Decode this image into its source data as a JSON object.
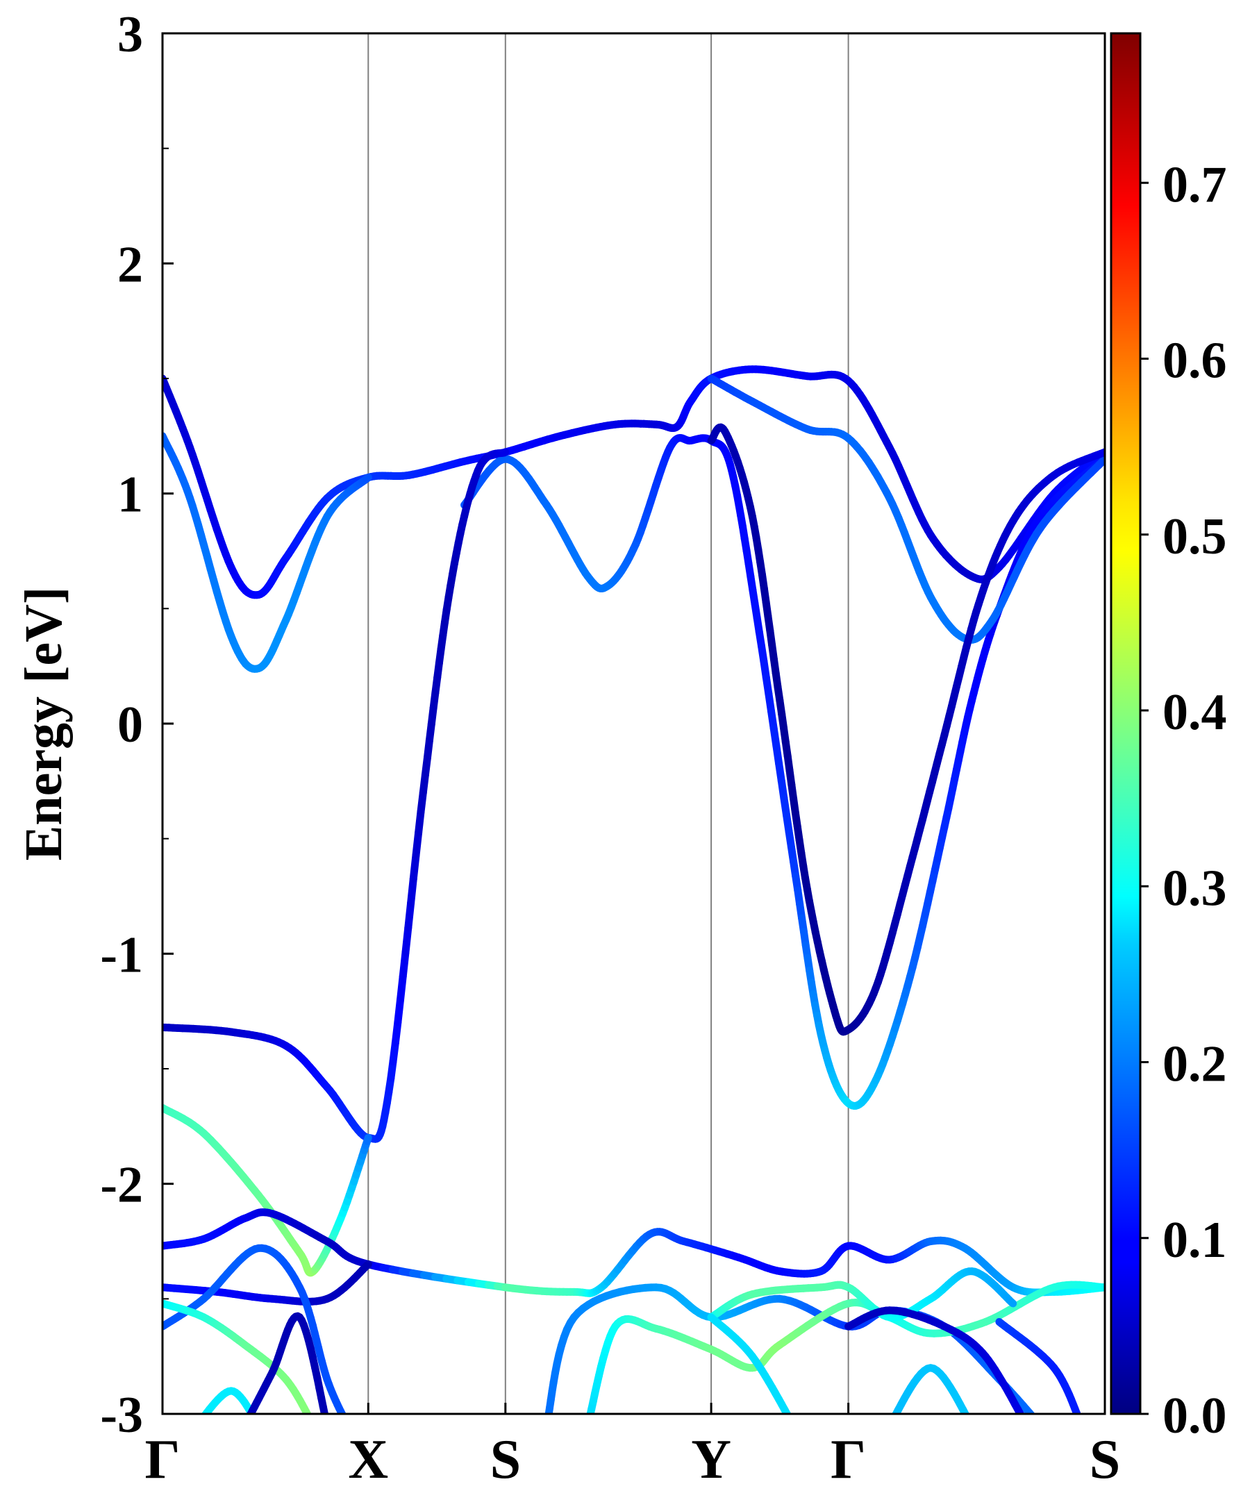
{
  "chart_data": {
    "type": "line",
    "title": "",
    "ylabel": "Energy [eV]",
    "xlabel": "",
    "ylim": [
      -3,
      3
    ],
    "y_ticks": [
      "3",
      "2",
      "1",
      "0",
      "-1",
      "-2",
      "-3"
    ],
    "y_tick_values": [
      3,
      2,
      1,
      0,
      -1,
      -2,
      -3
    ],
    "x_range": [
      0,
      6.87
    ],
    "kpoints": [
      {
        "label": "Γ",
        "x": 0.0
      },
      {
        "label": "X",
        "x": 1.5
      },
      {
        "label": "S",
        "x": 2.5
      },
      {
        "label": "Y",
        "x": 4.0
      },
      {
        "label": "Γ",
        "x": 5.0
      },
      {
        "label": "S",
        "x": 6.87
      }
    ],
    "colorbar": {
      "colormap": "jet",
      "range": [
        0.0,
        0.785
      ],
      "ticks": [
        "0.0",
        "0.1",
        "0.2",
        "0.3",
        "0.4",
        "0.5",
        "0.6",
        "0.7"
      ],
      "tick_values": [
        0.0,
        0.1,
        0.2,
        0.3,
        0.4,
        0.5,
        0.6,
        0.7
      ]
    },
    "series": [
      {
        "points": [
          [
            0,
            1.5,
            0.06
          ],
          [
            0.2,
            1.2,
            0.07
          ],
          [
            0.5,
            0.68,
            0.09
          ],
          [
            0.7,
            0.56,
            0.1
          ],
          [
            0.9,
            0.72,
            0.11
          ],
          [
            1.2,
            0.98,
            0.13
          ],
          [
            1.5,
            1.07,
            0.14
          ],
          [
            1.8,
            1.08,
            0.13
          ],
          [
            2.2,
            1.14,
            0.11
          ],
          [
            2.5,
            1.18,
            0.1
          ],
          [
            2.9,
            1.25,
            0.09
          ],
          [
            3.3,
            1.3,
            0.08
          ],
          [
            3.6,
            1.3,
            0.07
          ],
          [
            3.75,
            1.29,
            0.08
          ],
          [
            3.85,
            1.4,
            0.1
          ],
          [
            4.0,
            1.5,
            0.11
          ],
          [
            4.3,
            1.54,
            0.1
          ],
          [
            4.7,
            1.51,
            0.09
          ],
          [
            5.0,
            1.49,
            0.08
          ],
          [
            5.3,
            1.2,
            0.07
          ],
          [
            5.6,
            0.82,
            0.07
          ],
          [
            5.9,
            0.64,
            0.06
          ],
          [
            6.1,
            0.68,
            0.08
          ],
          [
            6.5,
            1.0,
            0.1
          ],
          [
            6.87,
            1.18,
            0.11
          ]
        ]
      },
      {
        "points": [
          [
            0,
            1.25,
            0.17
          ],
          [
            0.2,
            0.98,
            0.18
          ],
          [
            0.5,
            0.38,
            0.2
          ],
          [
            0.7,
            0.24,
            0.21
          ],
          [
            0.9,
            0.45,
            0.21
          ],
          [
            1.2,
            0.9,
            0.19
          ],
          [
            1.5,
            1.07,
            0.16
          ]
        ]
      },
      {
        "points": [
          [
            2.2,
            0.95,
            0.16
          ],
          [
            2.5,
            1.15,
            0.17
          ],
          [
            2.8,
            0.95,
            0.18
          ],
          [
            3.1,
            0.64,
            0.19
          ],
          [
            3.25,
            0.6,
            0.19
          ],
          [
            3.45,
            0.78,
            0.17
          ],
          [
            3.7,
            1.2,
            0.12
          ],
          [
            3.85,
            1.23,
            0.1
          ],
          [
            4.0,
            1.23,
            0.1
          ],
          [
            4.15,
            1.1,
            0.1
          ],
          [
            4.35,
            0.4,
            0.11
          ],
          [
            4.6,
            -0.6,
            0.14
          ],
          [
            4.8,
            -1.35,
            0.22
          ],
          [
            5.0,
            -1.65,
            0.27
          ],
          [
            5.2,
            -1.55,
            0.24
          ],
          [
            5.45,
            -1.1,
            0.18
          ],
          [
            5.7,
            -0.45,
            0.13
          ],
          [
            5.9,
            0.1,
            0.1
          ],
          [
            6.1,
            0.5,
            0.09
          ],
          [
            6.4,
            0.9,
            0.1
          ],
          [
            6.87,
            1.15,
            0.12
          ]
        ]
      },
      {
        "points": [
          [
            4.0,
            1.5,
            0.14
          ],
          [
            4.3,
            1.4,
            0.16
          ],
          [
            4.7,
            1.28,
            0.17
          ],
          [
            5.0,
            1.24,
            0.18
          ],
          [
            5.3,
            0.98,
            0.18
          ],
          [
            5.6,
            0.55,
            0.19
          ],
          [
            5.85,
            0.37,
            0.19
          ],
          [
            6.05,
            0.45,
            0.18
          ],
          [
            6.4,
            0.85,
            0.16
          ],
          [
            6.87,
            1.15,
            0.15
          ]
        ]
      },
      {
        "points": [
          [
            4.0,
            1.23,
            0.04
          ],
          [
            4.1,
            1.27,
            0.04
          ],
          [
            4.3,
            0.9,
            0.03
          ],
          [
            4.5,
            0.1,
            0.02
          ],
          [
            4.7,
            -0.72,
            0.02
          ],
          [
            4.9,
            -1.25,
            0.02
          ],
          [
            5.0,
            -1.33,
            0.02
          ],
          [
            5.2,
            -1.15,
            0.03
          ],
          [
            5.45,
            -0.62,
            0.04
          ],
          [
            5.7,
            -0.05,
            0.04
          ],
          [
            5.95,
            0.52,
            0.05
          ],
          [
            6.2,
            0.88,
            0.06
          ],
          [
            6.5,
            1.08,
            0.07
          ],
          [
            6.87,
            1.18,
            0.08
          ]
        ]
      },
      {
        "points": [
          [
            0,
            -1.32,
            0.05
          ],
          [
            0.5,
            -1.34,
            0.06
          ],
          [
            0.9,
            -1.4,
            0.08
          ],
          [
            1.2,
            -1.58,
            0.11
          ],
          [
            1.5,
            -1.8,
            0.14
          ],
          [
            1.65,
            -1.6,
            0.12
          ],
          [
            1.9,
            -0.3,
            0.05
          ],
          [
            2.1,
            0.6,
            0.04
          ],
          [
            2.3,
            1.1,
            0.06
          ],
          [
            2.5,
            1.18,
            0.08
          ]
        ]
      },
      {
        "points": [
          [
            0,
            -1.67,
            0.34
          ],
          [
            0.3,
            -1.78,
            0.35
          ],
          [
            0.7,
            -2.05,
            0.37
          ],
          [
            1.0,
            -2.3,
            0.4
          ],
          [
            1.1,
            -2.38,
            0.41
          ],
          [
            1.3,
            -2.15,
            0.3
          ],
          [
            1.5,
            -1.8,
            0.18
          ]
        ]
      },
      {
        "points": [
          [
            0,
            -2.27,
            0.1
          ],
          [
            0.3,
            -2.24,
            0.11
          ],
          [
            0.6,
            -2.15,
            0.09
          ],
          [
            0.8,
            -2.13,
            0.07
          ],
          [
            1.2,
            -2.25,
            0.05
          ],
          [
            1.5,
            -2.35,
            0.06
          ],
          [
            2.5,
            -2.45,
            0.36
          ],
          [
            3.0,
            -2.47,
            0.34
          ],
          [
            3.2,
            -2.45,
            0.26
          ],
          [
            3.55,
            -2.22,
            0.17
          ],
          [
            3.8,
            -2.25,
            0.14
          ],
          [
            4.2,
            -2.32,
            0.1
          ],
          [
            4.5,
            -2.38,
            0.1
          ],
          [
            4.8,
            -2.38,
            0.12
          ],
          [
            5.0,
            -2.27,
            0.1
          ],
          [
            5.3,
            -2.33,
            0.11
          ],
          [
            5.6,
            -2.25,
            0.18
          ],
          [
            5.85,
            -2.28,
            0.2
          ],
          [
            6.2,
            -2.45,
            0.22
          ],
          [
            6.5,
            -2.47,
            0.28
          ],
          [
            6.87,
            -2.45,
            0.3
          ]
        ]
      },
      {
        "points": [
          [
            0,
            -2.45,
            0.11
          ],
          [
            0.4,
            -2.47,
            0.1
          ],
          [
            0.8,
            -2.5,
            0.08
          ],
          [
            1.2,
            -2.5,
            0.05
          ],
          [
            1.5,
            -2.35,
            0.04
          ]
        ]
      },
      {
        "points": [
          [
            0,
            -2.62,
            0.16
          ],
          [
            0.3,
            -2.5,
            0.17
          ],
          [
            0.7,
            -2.28,
            0.17
          ],
          [
            1.0,
            -2.45,
            0.16
          ],
          [
            1.2,
            -2.85,
            0.16
          ],
          [
            1.35,
            -3.05,
            0.16
          ]
        ]
      },
      {
        "points": [
          [
            0,
            -2.52,
            0.29
          ],
          [
            0.3,
            -2.58,
            0.32
          ],
          [
            0.6,
            -2.7,
            0.37
          ],
          [
            0.9,
            -2.85,
            0.39
          ],
          [
            1.1,
            -3.05,
            0.4
          ]
        ]
      },
      {
        "points": [
          [
            0.25,
            -3.05,
            0.28
          ],
          [
            0.5,
            -2.9,
            0.28
          ],
          [
            0.7,
            -3.05,
            0.28
          ]
        ]
      },
      {
        "points": [
          [
            0.6,
            -3.05,
            0.05
          ],
          [
            0.8,
            -2.82,
            0.04
          ],
          [
            1.0,
            -2.58,
            0.04
          ],
          [
            1.2,
            -3.05,
            0.04
          ]
        ]
      },
      {
        "points": [
          [
            2.8,
            -3.05,
            0.18
          ],
          [
            3.0,
            -2.58,
            0.2
          ],
          [
            3.6,
            -2.45,
            0.22
          ],
          [
            4.0,
            -2.58,
            0.24
          ],
          [
            4.5,
            -2.5,
            0.2
          ],
          [
            5.0,
            -2.62,
            0.14
          ],
          [
            5.3,
            -2.55,
            0.15
          ],
          [
            5.7,
            -2.62,
            0.16
          ],
          [
            6.1,
            -2.85,
            0.18
          ],
          [
            6.4,
            -3.05,
            0.18
          ]
        ]
      },
      {
        "points": [
          [
            3.1,
            -3.05,
            0.26
          ],
          [
            3.3,
            -2.62,
            0.3
          ],
          [
            3.6,
            -2.63,
            0.35
          ],
          [
            4.0,
            -2.72,
            0.38
          ],
          [
            4.3,
            -2.8,
            0.38
          ],
          [
            4.5,
            -2.7,
            0.4
          ],
          [
            5.0,
            -2.52,
            0.36
          ],
          [
            5.3,
            -2.58,
            0.3
          ],
          [
            5.6,
            -2.65,
            0.33
          ],
          [
            6.0,
            -2.6,
            0.35
          ],
          [
            6.5,
            -2.45,
            0.32
          ],
          [
            6.87,
            -2.45,
            0.3
          ]
        ]
      },
      {
        "points": [
          [
            4.0,
            -2.58,
            0.3
          ],
          [
            4.3,
            -2.48,
            0.36
          ],
          [
            4.8,
            -2.45,
            0.36
          ],
          [
            5.0,
            -2.45,
            0.35
          ],
          [
            5.3,
            -2.58,
            0.3
          ],
          [
            5.6,
            -2.5,
            0.28
          ],
          [
            5.9,
            -2.38,
            0.24
          ],
          [
            6.2,
            -2.52,
            0.22
          ]
        ]
      },
      {
        "points": [
          [
            4.0,
            -2.58,
            0.27
          ],
          [
            4.3,
            -2.75,
            0.27
          ],
          [
            4.6,
            -3.05,
            0.27
          ]
        ]
      },
      {
        "points": [
          [
            5.3,
            -3.05,
            0.24
          ],
          [
            5.6,
            -2.8,
            0.25
          ],
          [
            5.9,
            -3.05,
            0.25
          ]
        ]
      },
      {
        "points": [
          [
            5.0,
            -2.62,
            0.05
          ],
          [
            5.3,
            -2.55,
            0.05
          ],
          [
            5.7,
            -2.62,
            0.06
          ],
          [
            6.0,
            -2.75,
            0.07
          ],
          [
            6.3,
            -3.05,
            0.08
          ]
        ]
      },
      {
        "points": [
          [
            6.1,
            -2.6,
            0.15
          ],
          [
            6.5,
            -2.8,
            0.12
          ],
          [
            6.7,
            -3.05,
            0.12
          ]
        ]
      }
    ]
  }
}
